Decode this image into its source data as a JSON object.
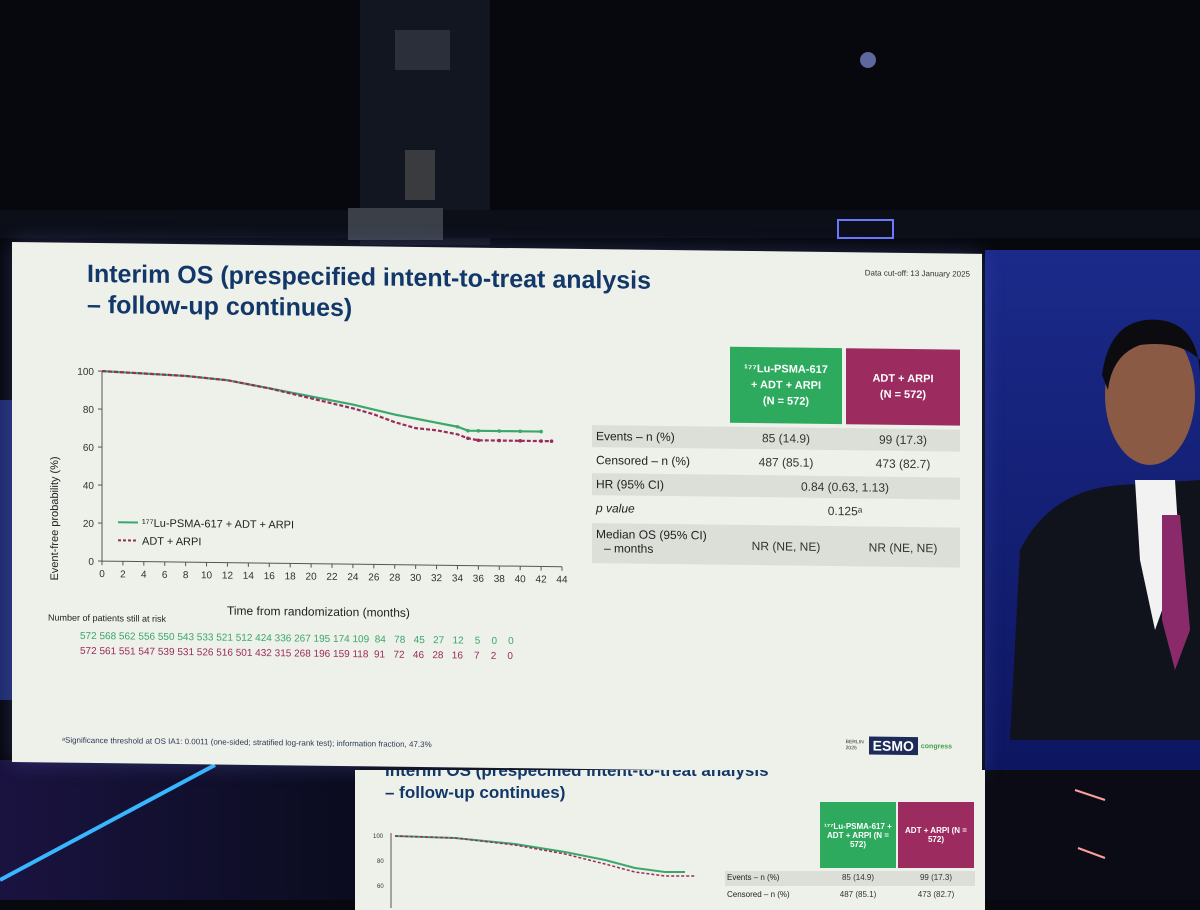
{
  "slide": {
    "title_line1": "Interim OS (prespecified intent-to-treat analysis",
    "title_line2": "– follow-up continues)",
    "data_cutoff": "Data cut-off: 13 January 2025",
    "footnote": "ᵃSignificance threshold at OS IA1: 0.0011 (one-sided; stratified log-rank test); information fraction, 47.3%",
    "logo": {
      "brand": "ESMO",
      "suffix": "congress",
      "location": "BERLIN 2025"
    }
  },
  "chart_data": {
    "type": "line",
    "ylabel": "Event-free probability (%)",
    "xlabel": "Time from randomization (months)",
    "ylim": [
      0,
      100
    ],
    "xlim": [
      0,
      44
    ],
    "y_ticks": [
      "0",
      "20",
      "40",
      "60",
      "80",
      "100"
    ],
    "x_ticks": [
      "0",
      "2",
      "4",
      "6",
      "8",
      "10",
      "12",
      "14",
      "16",
      "18",
      "20",
      "22",
      "24",
      "26",
      "28",
      "30",
      "32",
      "34",
      "36",
      "38",
      "40",
      "42",
      "44"
    ],
    "colors": {
      "lu": "#3aa86b",
      "adt": "#9a2c5c"
    },
    "series": [
      {
        "name": "¹⁷⁷Lu-PSMA-617 + ADT + ARPI",
        "x": [
          0,
          4,
          8,
          12,
          16,
          20,
          24,
          28,
          30,
          32,
          34,
          35,
          36,
          38,
          40,
          42
        ],
        "y": [
          100,
          99,
          98,
          96,
          92,
          88,
          84,
          79,
          77,
          75,
          73,
          71,
          71,
          71,
          71,
          71
        ]
      },
      {
        "name": "ADT + ARPI",
        "x": [
          0,
          4,
          8,
          12,
          16,
          20,
          24,
          26,
          28,
          30,
          32,
          34,
          35,
          36,
          38,
          40,
          42,
          43
        ],
        "y": [
          100,
          99,
          98,
          96,
          92,
          87,
          82,
          79,
          75,
          72,
          71,
          69,
          67,
          66,
          66,
          66,
          66,
          66
        ]
      }
    ]
  },
  "at_risk": {
    "title": "Number of patients still at risk",
    "lu": "572 568 562 556 550 543 533 521 512 424 336 267 195 174 109  84   78   45   27   12    5    0    0",
    "adt": "572 561 551 547 539 531 526 516 501 432 315 268 196 159 118  91   72   46   28   16    7    2    0"
  },
  "table": {
    "col_lu": {
      "line1": "¹⁷⁷Lu-PSMA-617",
      "line2": "+ ADT + ARPI",
      "line3": "(N = 572)"
    },
    "col_adt": {
      "line1": "ADT + ARPI",
      "line2": "(N = 572)"
    },
    "rows": [
      {
        "label": "Events – n (%)",
        "lu": "85 (14.9)",
        "adt": "99 (17.3)"
      },
      {
        "label": "Censored – n (%)",
        "lu": "487 (85.1)",
        "adt": "473 (82.7)"
      },
      {
        "label": "HR (95% CI)",
        "merged": "0.84 (0.63, 1.13)"
      },
      {
        "label": "p value",
        "merged": "0.125ᵃ"
      },
      {
        "label": "Median OS (95% CI)",
        "label2": "– months",
        "lu": "NR (NE, NE)",
        "adt": "NR (NE, NE)"
      }
    ]
  },
  "second_slide": {
    "title_line1": "Interim OS (prespecified intent-to-treat analysis",
    "title_line2": "– follow-up continues)",
    "col_lu": "¹⁷⁷Lu-PSMA-617 + ADT + ARPI (N = 572)",
    "col_adt": "ADT + ARPI (N = 572)",
    "events_label": "Events – n (%)",
    "events_lu": "85 (14.9)",
    "events_adt": "99 (17.3)",
    "censored_label": "Censored – n (%)",
    "censored_lu": "487 (85.1)",
    "censored_adt": "473 (82.7)",
    "y_ticks": [
      "100",
      "80",
      "60"
    ]
  }
}
